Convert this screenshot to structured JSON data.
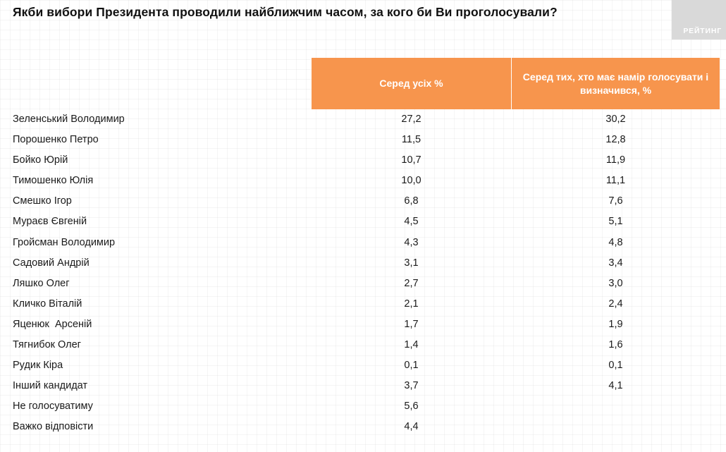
{
  "title": "Якби вибори Президента проводили найближчим часом, за кого би Ви проголосували?",
  "logo": {
    "text": "РЕЙТИНГ"
  },
  "table": {
    "headers": [
      "Серед усіх %",
      "Серед тих, хто має намір голосувати і визначився, %"
    ],
    "rows": [
      {
        "name": "Зеленський Володимир",
        "all": "27,2",
        "decided": "30,2"
      },
      {
        "name": "Порошенко Петро",
        "all": "11,5",
        "decided": "12,8"
      },
      {
        "name": "Бойко Юрій",
        "all": "10,7",
        "decided": "11,9"
      },
      {
        "name": "Тимошенко Юлія",
        "all": "10,0",
        "decided": "11,1"
      },
      {
        "name": "Смешко Ігор",
        "all": "6,8",
        "decided": "7,6"
      },
      {
        "name": "Мураєв Євгеній",
        "all": "4,5",
        "decided": "5,1"
      },
      {
        "name": "Гройсман Володимир",
        "all": "4,3",
        "decided": "4,8"
      },
      {
        "name": "Садовий Андрій",
        "all": "3,1",
        "decided": "3,4"
      },
      {
        "name": "Ляшко Олег",
        "all": "2,7",
        "decided": "3,0"
      },
      {
        "name": "Кличко Віталій",
        "all": "2,1",
        "decided": "2,4"
      },
      {
        "name": "Яценюк  Арсеній",
        "all": "1,7",
        "decided": "1,9"
      },
      {
        "name": "Тягнибок Олег",
        "all": "1,4",
        "decided": "1,6"
      },
      {
        "name": "Рудик Кіра",
        "all": "0,1",
        "decided": "0,1"
      },
      {
        "name": "Інший кандидат",
        "all": "3,7",
        "decided": "4,1"
      },
      {
        "name": "Не голосуватиму",
        "all": "5,6",
        "decided": ""
      },
      {
        "name": "Важко відповісти",
        "all": "4,4",
        "decided": ""
      }
    ]
  }
}
